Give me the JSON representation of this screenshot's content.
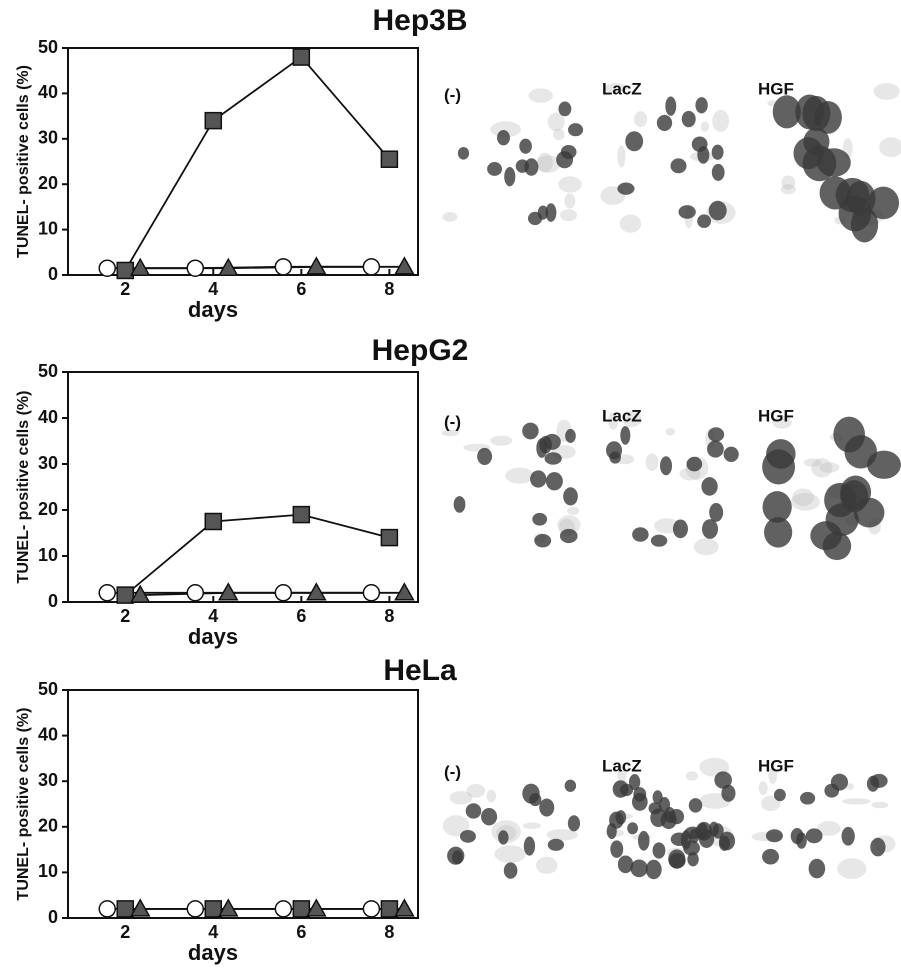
{
  "chart_data": [
    {
      "type": "line",
      "title": "Hep3B",
      "xlabel": "days",
      "ylabel": "TUNEL- positive cells (%)",
      "x": [
        2,
        4,
        6,
        8
      ],
      "xlim": [
        0.7,
        8.65
      ],
      "xticks": [
        2,
        4,
        6,
        8
      ],
      "ylim": [
        0,
        50
      ],
      "yticks": [
        0,
        10,
        20,
        30,
        40,
        50
      ],
      "series": [
        {
          "marker": "circle",
          "color": "#ffffff",
          "values": [
            1.5,
            1.5,
            1.8,
            1.8
          ]
        },
        {
          "marker": "square",
          "color": "#555555",
          "values": [
            1,
            34,
            48,
            25.5
          ]
        },
        {
          "marker": "triangle",
          "color": "#555555",
          "values": [
            1.5,
            1.5,
            1.8,
            1.8
          ]
        }
      ],
      "image_labels": [
        "(-)",
        "LacZ",
        "HGF"
      ]
    },
    {
      "type": "line",
      "title": "HepG2",
      "xlabel": "days",
      "ylabel": "TUNEL- positive cells (%)",
      "x": [
        2,
        4,
        6,
        8
      ],
      "xlim": [
        0.7,
        8.65
      ],
      "xticks": [
        2,
        4,
        6,
        8
      ],
      "ylim": [
        0,
        50
      ],
      "yticks": [
        0,
        10,
        20,
        30,
        40,
        50
      ],
      "series": [
        {
          "marker": "circle",
          "color": "#ffffff",
          "values": [
            2,
            2,
            2,
            2
          ]
        },
        {
          "marker": "square",
          "color": "#555555",
          "values": [
            1.5,
            17.5,
            19,
            14
          ]
        },
        {
          "marker": "triangle",
          "color": "#555555",
          "values": [
            1.5,
            2,
            2,
            2
          ]
        }
      ],
      "image_labels": [
        "(-)",
        "LacZ",
        "HGF"
      ]
    },
    {
      "type": "line",
      "title": "HeLa",
      "xlabel": "days",
      "ylabel": "TUNEL- positive cells (%)",
      "x": [
        2,
        4,
        6,
        8
      ],
      "xlim": [
        0.7,
        8.65
      ],
      "xticks": [
        2,
        4,
        6,
        8
      ],
      "ylim": [
        0,
        50
      ],
      "yticks": [
        0,
        10,
        20,
        30,
        40,
        50
      ],
      "series": [
        {
          "marker": "circle",
          "color": "#ffffff",
          "values": [
            2,
            2,
            2,
            2
          ]
        },
        {
          "marker": "square",
          "color": "#555555",
          "values": [
            2,
            2,
            2,
            2
          ]
        },
        {
          "marker": "triangle",
          "color": "#555555",
          "values": [
            2,
            2,
            2,
            2
          ]
        }
      ],
      "image_labels": [
        "(-)",
        "LacZ",
        "HGF"
      ]
    }
  ]
}
